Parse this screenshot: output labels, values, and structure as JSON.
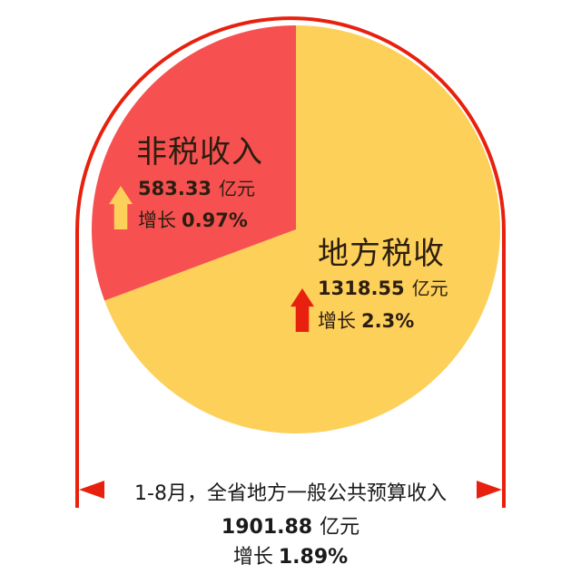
{
  "chart_data": {
    "type": "pie",
    "title": "1-8月，全省地方一般公共预算收入",
    "total": {
      "value": "1901.88",
      "unit": "亿元",
      "growth_label": "增长",
      "growth": "1.89%"
    },
    "slices": [
      {
        "name": "地方税收",
        "value": 1318.55,
        "value_text": "1318.55",
        "unit": "亿元",
        "growth_label": "增长",
        "growth": "2.3%",
        "color": "#fdd05a",
        "arrow_color": "#e8210f"
      },
      {
        "name": "非税收入",
        "value": 583.33,
        "value_text": "583.33",
        "unit": "亿元",
        "growth_label": "增长",
        "growth": "0.97%",
        "color": "#f65150",
        "arrow_color": "#fdd05a"
      }
    ],
    "frame_color": "#e8210f"
  }
}
